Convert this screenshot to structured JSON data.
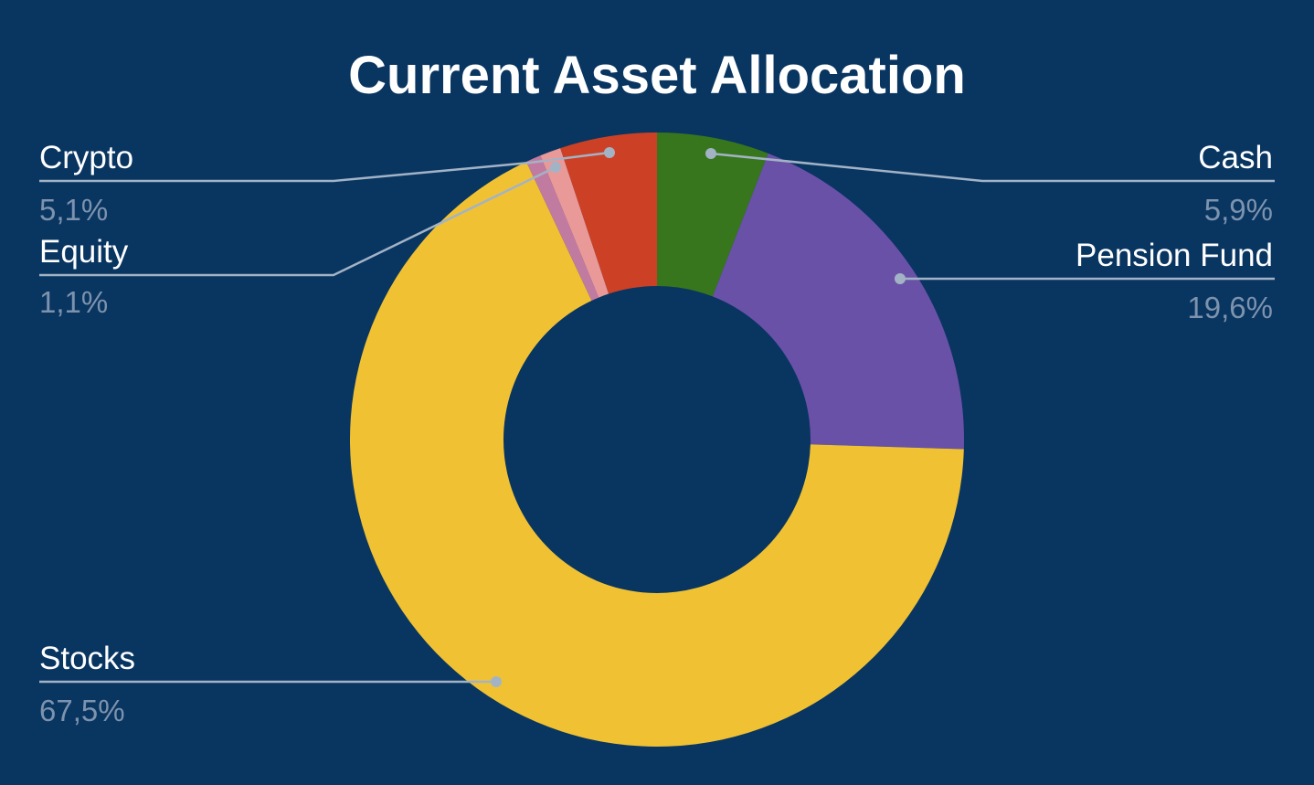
{
  "chart_data": {
    "type": "pie",
    "donut": true,
    "title": "Current Asset Allocation",
    "series": [
      {
        "name": "Cash",
        "label": "5,9%",
        "value": 5.9,
        "color": "#37761c"
      },
      {
        "name": "Pension Fund",
        "label": "19,6%",
        "value": 19.6,
        "color": "#6a51a8"
      },
      {
        "name": "Stocks",
        "label": "67,5%",
        "value": 67.5,
        "color": "#f0c233"
      },
      {
        "name": "",
        "label": "",
        "value": 0.8,
        "color": "#c27ba0"
      },
      {
        "name": "Equity",
        "label": "1,1%",
        "value": 1.1,
        "color": "#ea9999"
      },
      {
        "name": "Crypto",
        "label": "5,1%",
        "value": 5.1,
        "color": "#cc4125"
      }
    ],
    "background": "#093561"
  }
}
